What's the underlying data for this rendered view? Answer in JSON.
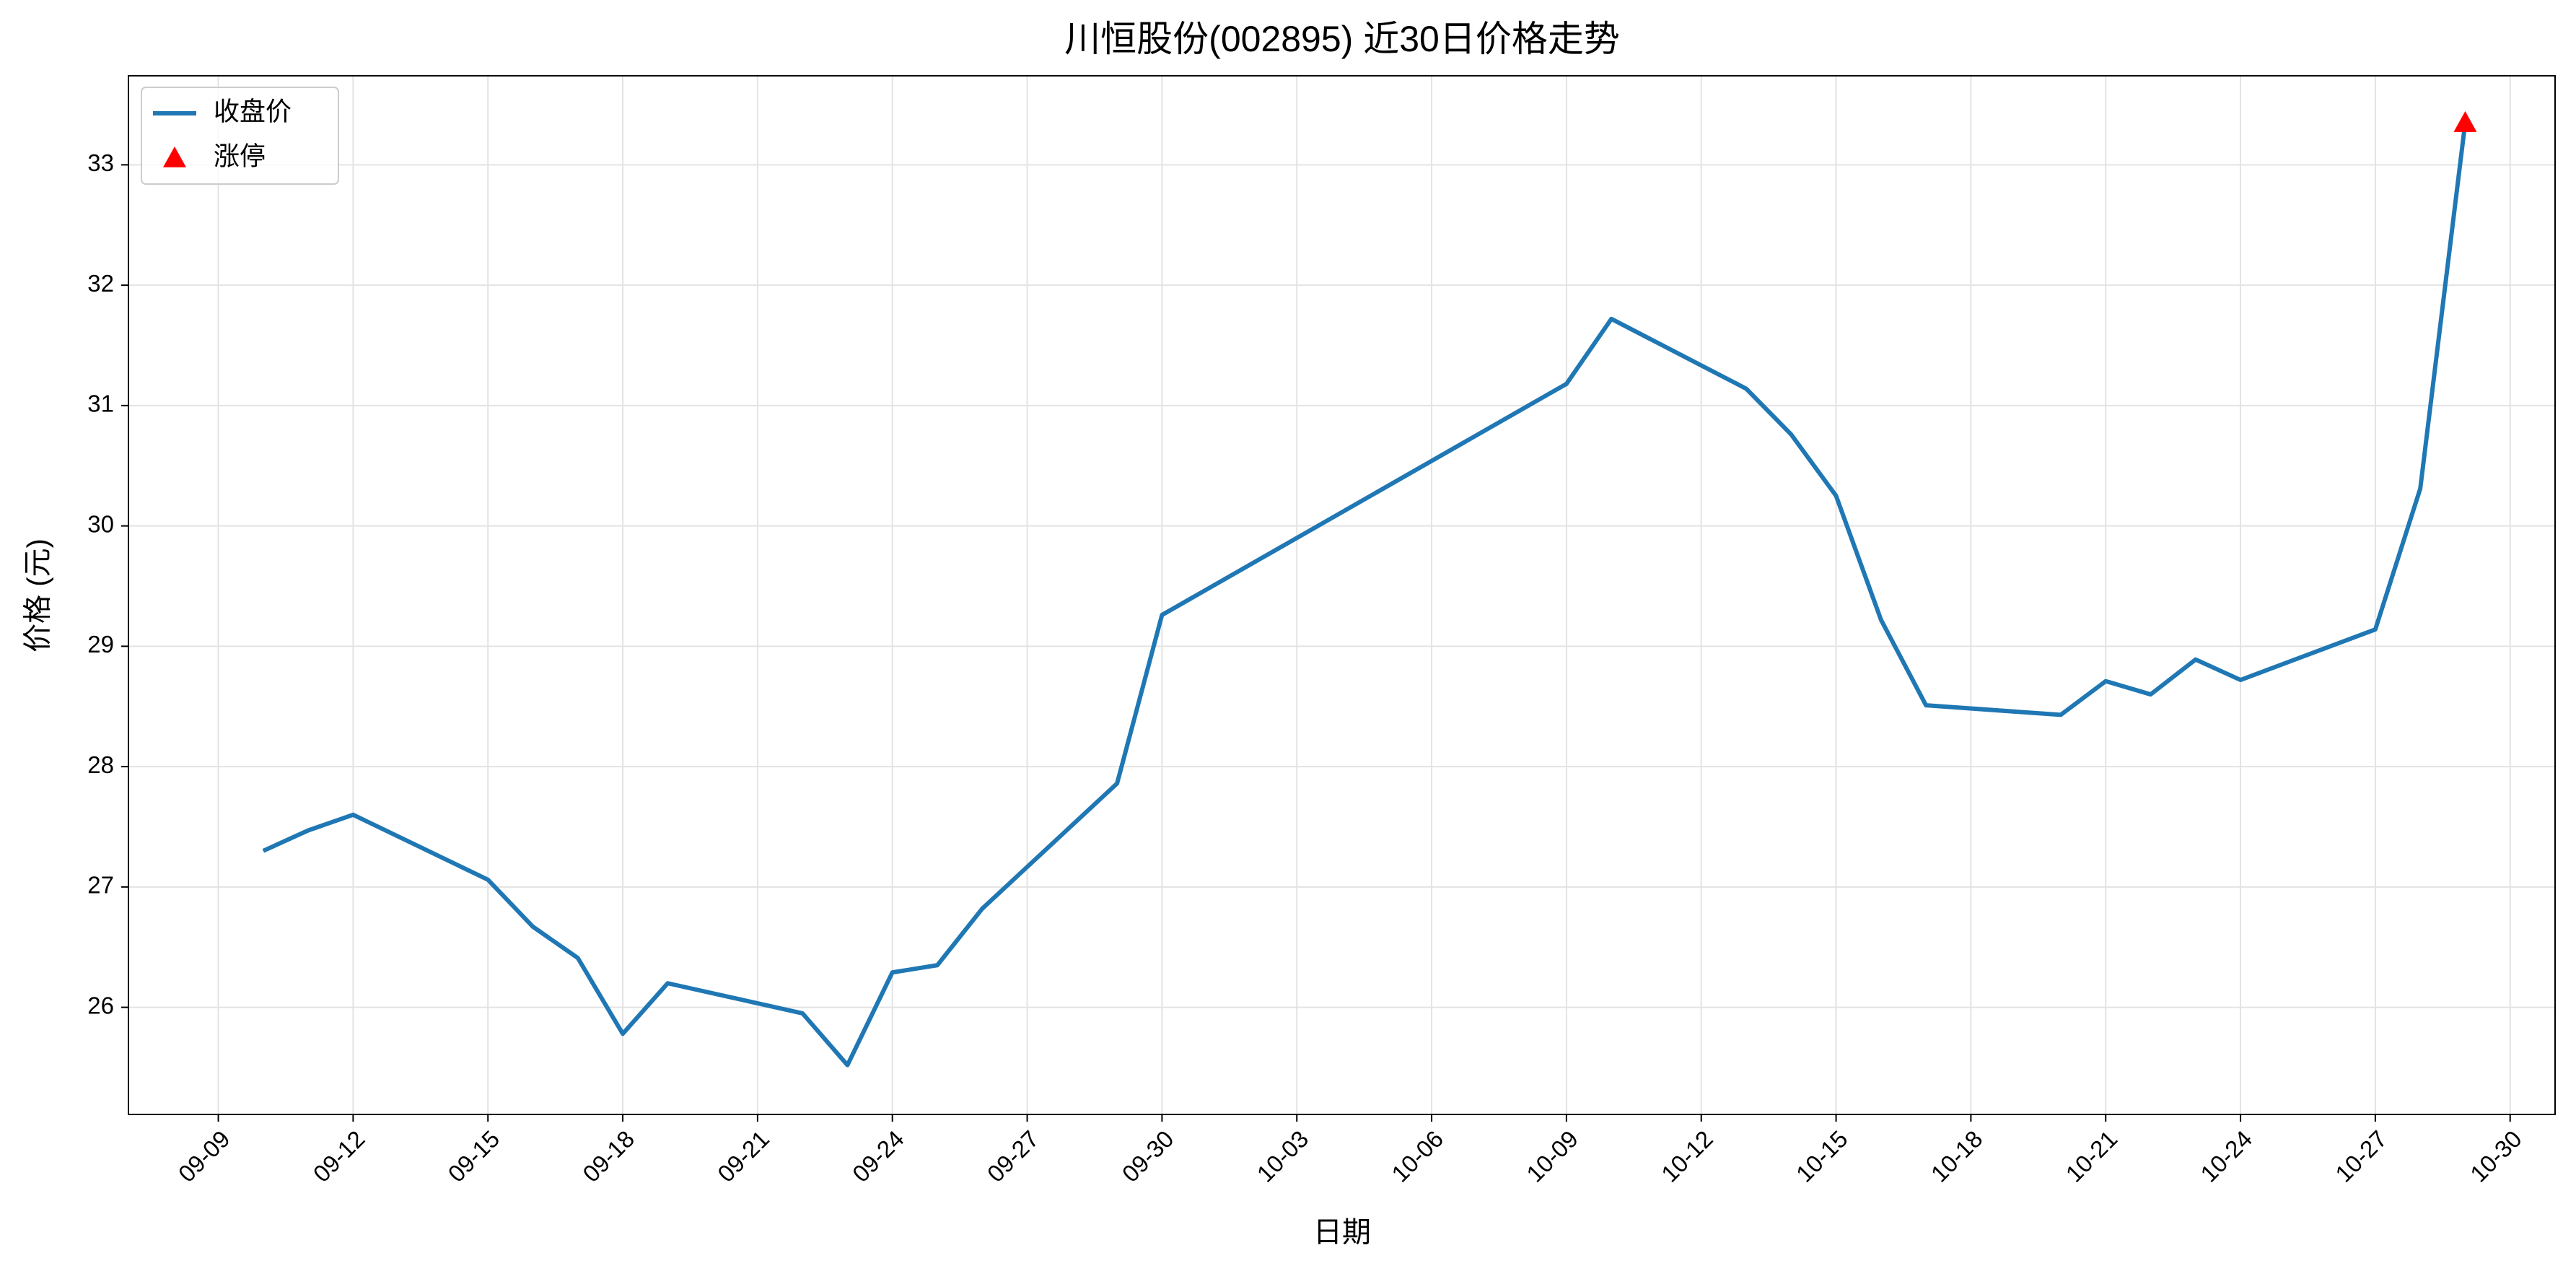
{
  "chart_data": {
    "type": "line",
    "title": "川恒股份(002895) 近30日价格走势",
    "xlabel": "日期",
    "ylabel": "价格 (元)",
    "x": [
      "09-10",
      "09-11",
      "09-12",
      "09-15",
      "09-16",
      "09-17",
      "09-18",
      "09-19",
      "09-22",
      "09-23",
      "09-24",
      "09-25",
      "09-26",
      "09-29",
      "09-30",
      "10-09",
      "10-10",
      "10-13",
      "10-14",
      "10-15",
      "10-16",
      "10-17",
      "10-20",
      "10-21",
      "10-22",
      "10-23",
      "10-24",
      "10-27",
      "10-28",
      "10-29"
    ],
    "series": [
      {
        "name": "收盘价",
        "color": "#1f77b4",
        "values": [
          27.3,
          27.47,
          27.6,
          27.06,
          26.67,
          26.41,
          25.78,
          26.2,
          25.95,
          25.52,
          26.29,
          26.35,
          26.82,
          27.86,
          29.26,
          31.18,
          31.72,
          31.14,
          30.76,
          30.25,
          29.22,
          28.51,
          28.43,
          28.71,
          28.6,
          28.89,
          28.72,
          29.14,
          30.31,
          33.35
        ]
      },
      {
        "name": "涨停",
        "type": "scatter",
        "marker": "triangle",
        "color": "#ff0000",
        "x": [
          "10-29"
        ],
        "values": [
          33.35
        ]
      }
    ],
    "xlim": [
      "09-07",
      "10-31"
    ],
    "xticks": [
      "09-09",
      "09-12",
      "09-15",
      "09-18",
      "09-21",
      "09-24",
      "09-27",
      "09-30",
      "10-03",
      "10-06",
      "10-09",
      "10-12",
      "10-15",
      "10-18",
      "10-21",
      "10-24",
      "10-27",
      "10-30"
    ],
    "ylim": [
      25.11,
      33.74
    ],
    "yticks": [
      26,
      27,
      28,
      29,
      30,
      31,
      32,
      33
    ],
    "grid": true,
    "legend": "upper left"
  }
}
